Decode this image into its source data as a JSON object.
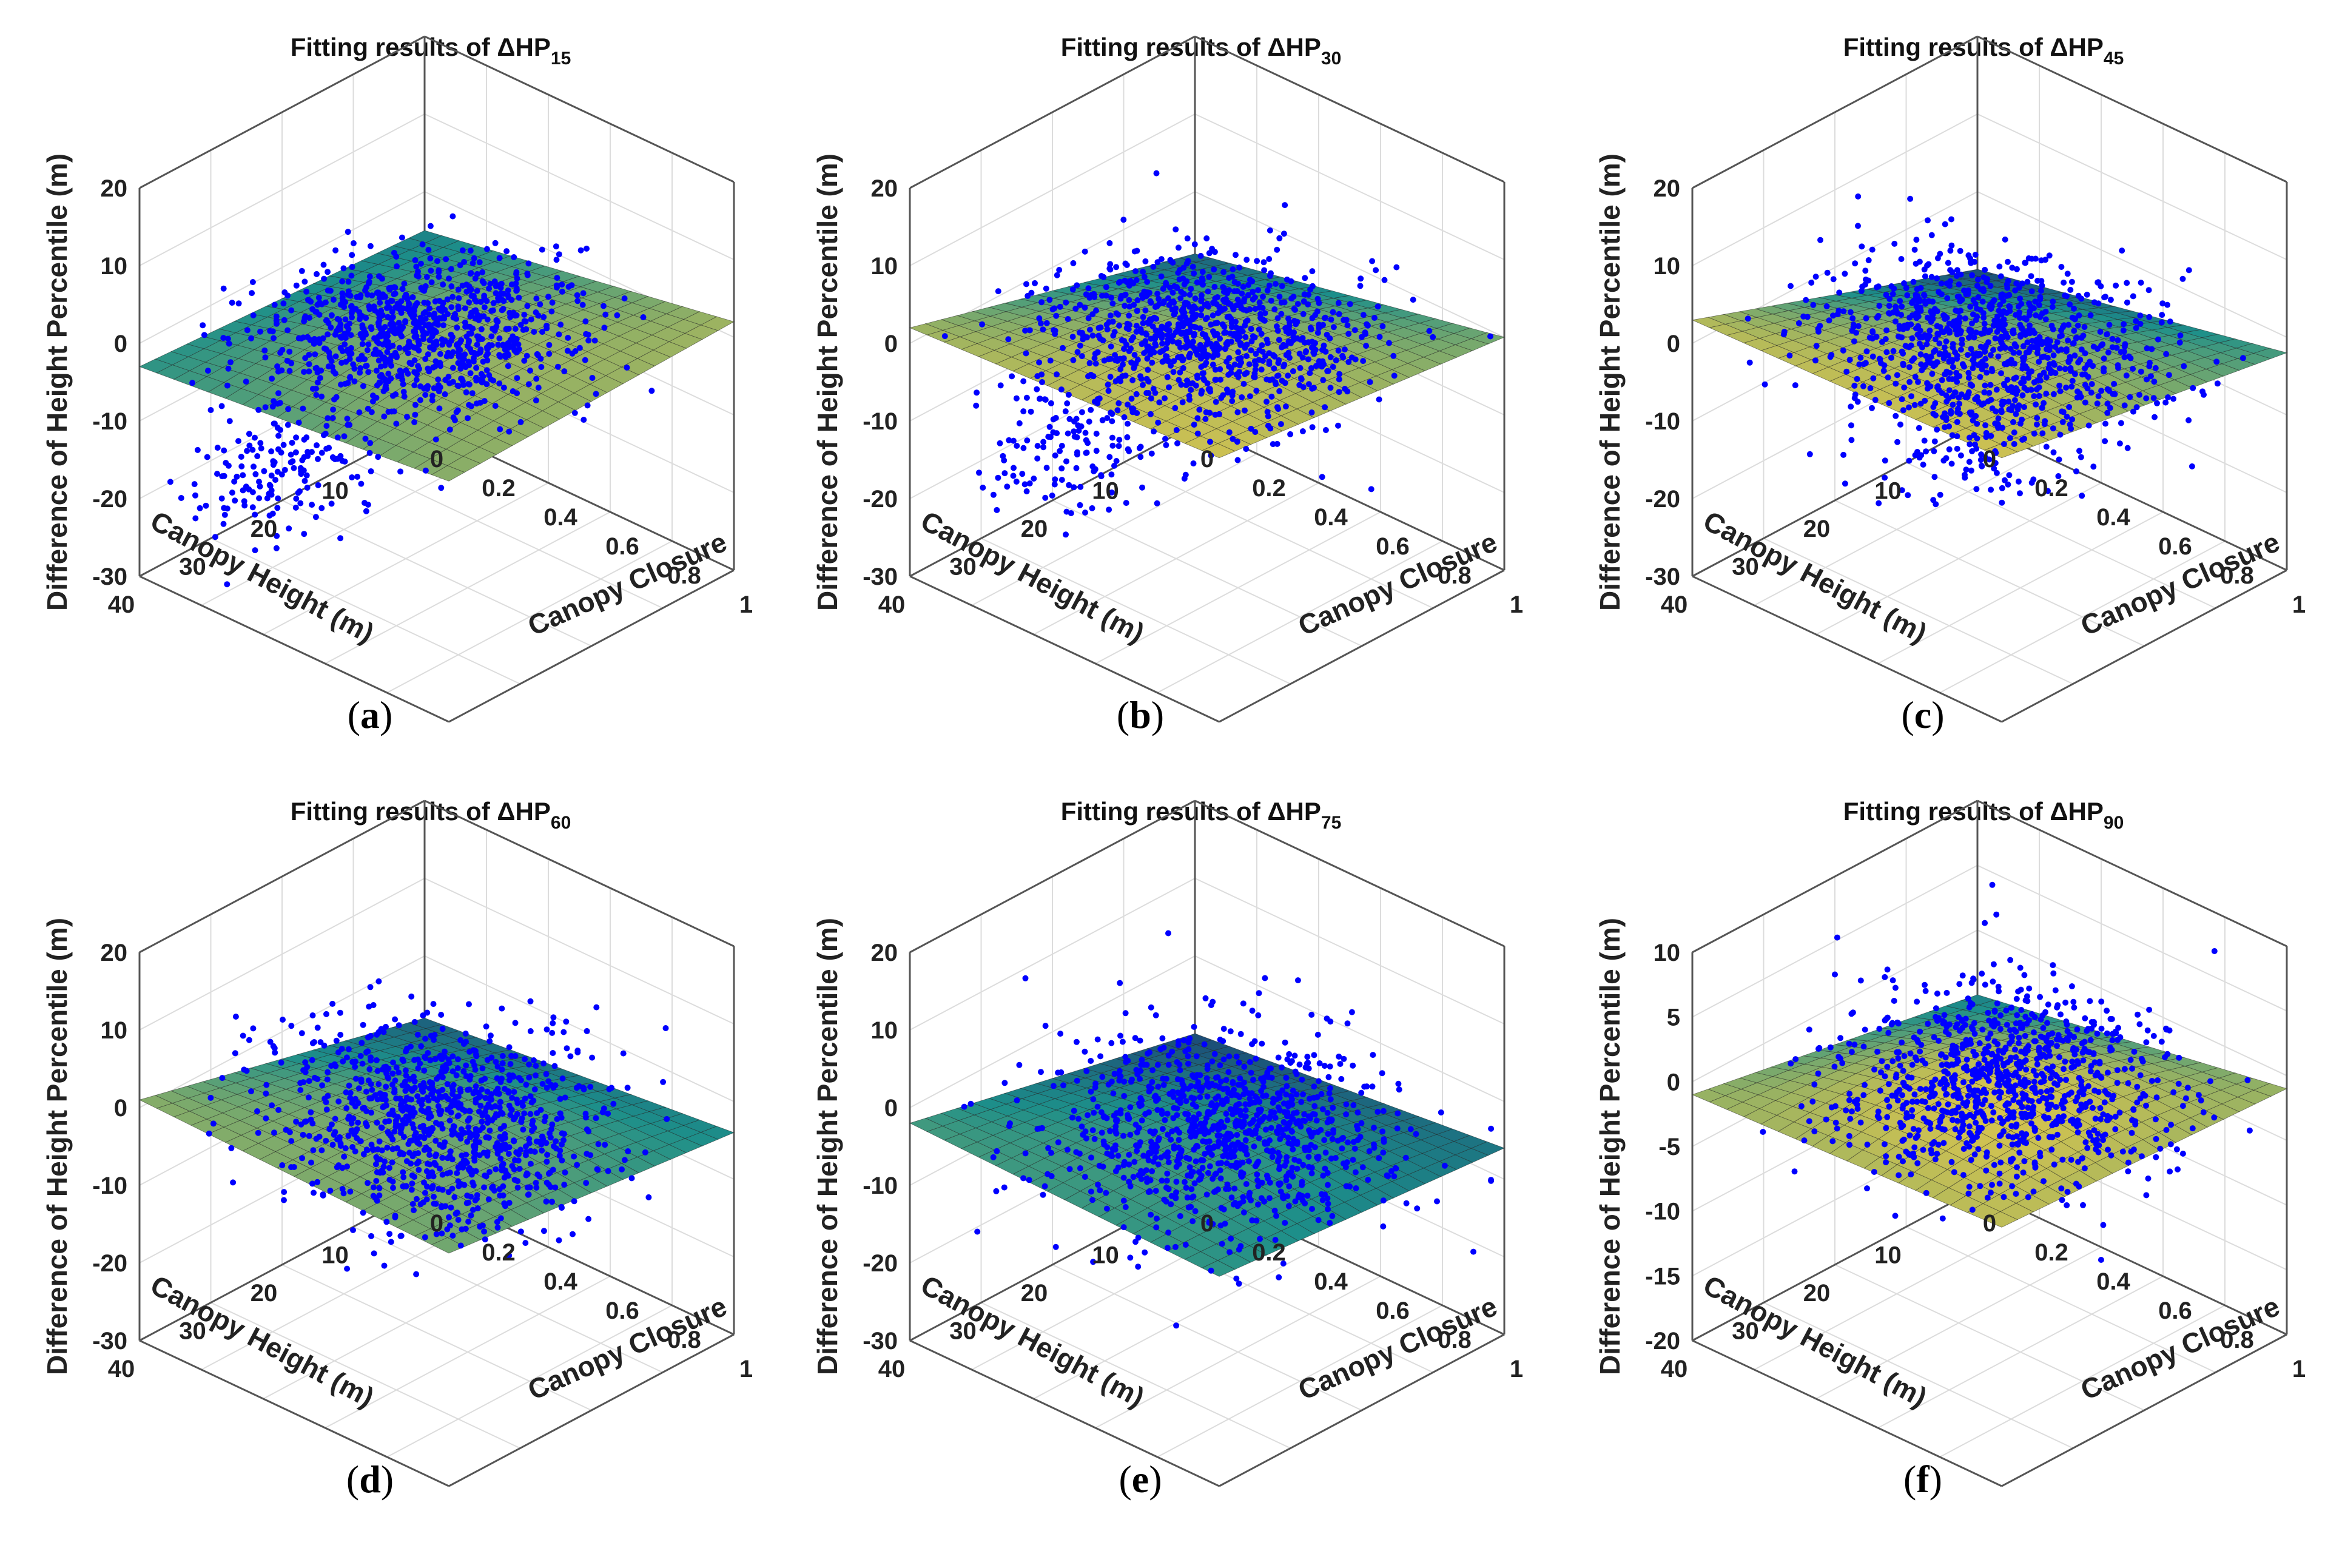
{
  "chart_data": [
    {
      "type": "surface3d-scatter",
      "panel_label": "a",
      "title": "Fitting results of ΔHP",
      "title_subscript": "15",
      "xlabel": "Canopy Closure",
      "ylabel": "Canopy Height (m)",
      "zlabel": "Difference of Height Percentile (m)",
      "xlim": [
        0,
        1
      ],
      "ylim": [
        0,
        40
      ],
      "zlim": [
        -30,
        20
      ],
      "x_ticks": [
        "0",
        "0.2",
        "0.4",
        "0.6",
        "0.8",
        "1"
      ],
      "y_ticks": [
        "10",
        "20",
        "30",
        "40"
      ],
      "z_ticks": [
        "-30",
        "-20",
        "-10",
        "0",
        "10",
        "20"
      ],
      "surface_corners": {
        "height40_closure0": -3,
        "height40_closure1": 1,
        "height0_closure0": -5,
        "height0_closure1": 2
      },
      "scatter": {
        "color": "#0000ff",
        "points": 900,
        "cluster_center": [
          0.45,
          20,
          0
        ],
        "spread": [
          0.2,
          8,
          3
        ],
        "low_cluster_center": [
          0.2,
          30,
          -18
        ],
        "low_cluster_points": 150
      }
    },
    {
      "type": "surface3d-scatter",
      "panel_label": "b",
      "title": "Fitting results of ΔHP",
      "title_subscript": "30",
      "xlabel": "Canopy Closure",
      "ylabel": "Canopy Height (m)",
      "zlabel": "Difference of Height Percentile (m)",
      "xlim": [
        0,
        1
      ],
      "ylim": [
        0,
        40
      ],
      "zlim": [
        -30,
        20
      ],
      "x_ticks": [
        "0",
        "0.2",
        "0.4",
        "0.6",
        "0.8",
        "1"
      ],
      "y_ticks": [
        "10",
        "20",
        "30",
        "40"
      ],
      "z_ticks": [
        "-30",
        "-20",
        "-10",
        "0",
        "10",
        "20"
      ],
      "surface_corners": {
        "height40_closure0": 2,
        "height40_closure1": 4,
        "height0_closure0": -8,
        "height0_closure1": 0
      },
      "scatter": {
        "color": "#0000ff",
        "points": 900,
        "cluster_center": [
          0.5,
          20,
          -2
        ],
        "spread": [
          0.2,
          8,
          4
        ],
        "low_cluster_center": [
          0.25,
          28,
          -15
        ],
        "low_cluster_points": 130
      }
    },
    {
      "type": "surface3d-scatter",
      "panel_label": "c",
      "title": "Fitting results of ΔHP",
      "title_subscript": "45",
      "xlabel": "Canopy Closure",
      "ylabel": "Canopy Height (m)",
      "zlabel": "Difference of Height Percentile (m)",
      "xlim": [
        0,
        1
      ],
      "ylim": [
        0,
        40
      ],
      "zlim": [
        -30,
        20
      ],
      "x_ticks": [
        "0",
        "0.2",
        "0.4",
        "0.6",
        "0.8",
        "1"
      ],
      "y_ticks": [
        "10",
        "20",
        "30",
        "40"
      ],
      "z_ticks": [
        "-30",
        "-20",
        "-10",
        "0",
        "10",
        "20"
      ],
      "surface_corners": {
        "height40_closure0": 3,
        "height40_closure1": 4,
        "height0_closure0": -10,
        "height0_closure1": -2
      },
      "scatter": {
        "color": "#0000ff",
        "points": 900,
        "cluster_center": [
          0.5,
          20,
          -3
        ],
        "spread": [
          0.2,
          8,
          5
        ],
        "low_cluster_center": [
          0.45,
          20,
          -13
        ],
        "low_cluster_points": 100
      }
    },
    {
      "type": "surface3d-scatter",
      "panel_label": "d",
      "title": "Fitting results of ΔHP",
      "title_subscript": "60",
      "xlabel": "Canopy Closure",
      "ylabel": "Canopy Height (m)",
      "zlabel": "Difference of Height Percentile (m)",
      "xlim": [
        0,
        1
      ],
      "ylim": [
        0,
        40
      ],
      "zlim": [
        -30,
        20
      ],
      "x_ticks": [
        "0",
        "0.2",
        "0.4",
        "0.6",
        "0.8",
        "1"
      ],
      "y_ticks": [
        "10",
        "20",
        "30",
        "40"
      ],
      "z_ticks": [
        "-30",
        "-20",
        "-10",
        "0",
        "10",
        "20"
      ],
      "surface_corners": {
        "height40_closure0": 1,
        "height40_closure1": 0,
        "height0_closure0": -8,
        "height0_closure1": -4
      },
      "scatter": {
        "color": "#0000ff",
        "points": 900,
        "cluster_center": [
          0.5,
          20,
          0
        ],
        "spread": [
          0.2,
          8,
          5
        ],
        "low_cluster_center": [
          0.5,
          15,
          -12
        ],
        "low_cluster_points": 80
      }
    },
    {
      "type": "surface3d-scatter",
      "panel_label": "e",
      "title": "Fitting results of ΔHP",
      "title_subscript": "75",
      "xlabel": "Canopy Closure",
      "ylabel": "Canopy Height (m)",
      "zlabel": "Difference of Height Percentile (m)",
      "xlim": [
        0,
        1
      ],
      "ylim": [
        0,
        40
      ],
      "zlim": [
        -30,
        20
      ],
      "x_ticks": [
        "0",
        "0.2",
        "0.4",
        "0.6",
        "0.8",
        "1"
      ],
      "y_ticks": [
        "10",
        "20",
        "30",
        "40"
      ],
      "z_ticks": [
        "-30",
        "-20",
        "-10",
        "0",
        "10",
        "20"
      ],
      "surface_corners": {
        "height40_closure0": -2,
        "height40_closure1": -3,
        "height0_closure0": -10,
        "height0_closure1": -6
      },
      "scatter": {
        "color": "#0000ff",
        "points": 900,
        "cluster_center": [
          0.5,
          18,
          0
        ],
        "spread": [
          0.2,
          8,
          5
        ],
        "low_cluster_center": [
          0.45,
          15,
          -10
        ],
        "low_cluster_points": 70
      }
    },
    {
      "type": "surface3d-scatter",
      "panel_label": "f",
      "title": "Fitting results of ΔHP",
      "title_subscript": "90",
      "xlabel": "Canopy Closure",
      "ylabel": "Canopy Height (m)",
      "zlabel": "Difference of Height Percentile (m)",
      "xlim": [
        0,
        1
      ],
      "ylim": [
        0,
        40
      ],
      "zlim": [
        -20,
        10
      ],
      "x_ticks": [
        "0",
        "0.2",
        "0.4",
        "0.6",
        "0.8",
        "1"
      ],
      "y_ticks": [
        "10",
        "20",
        "30",
        "40"
      ],
      "z_ticks": [
        "-20",
        "-15",
        "-10",
        "-5",
        "0",
        "5",
        "10"
      ],
      "surface_corners": {
        "height40_closure0": -1,
        "height40_closure1": 0,
        "height0_closure0": -5,
        "height0_closure1": -1
      },
      "scatter": {
        "color": "#0000ff",
        "points": 900,
        "cluster_center": [
          0.5,
          18,
          -1
        ],
        "spread": [
          0.2,
          8,
          3
        ],
        "low_cluster_center": [
          0.45,
          15,
          -6
        ],
        "low_cluster_points": 60
      }
    }
  ],
  "colors": {
    "scatter": "#0000ff",
    "surface_low": "#1c2e6e",
    "surface_mid": "#1d8f8a",
    "surface_high": "#e6c84a",
    "grid": "#dcdcdc",
    "box": "#555555"
  }
}
